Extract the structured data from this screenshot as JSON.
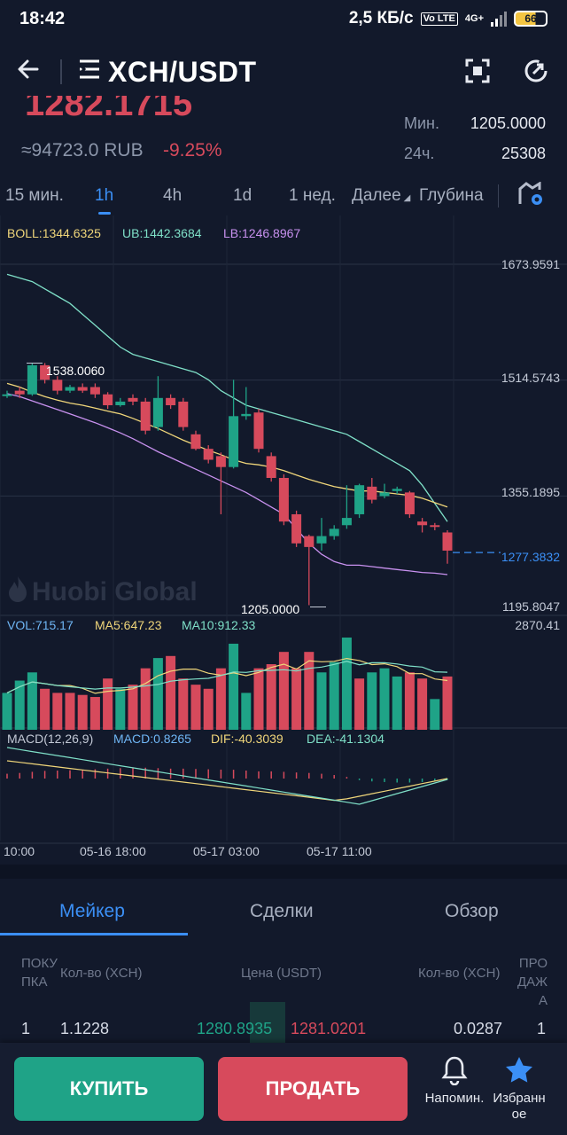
{
  "status": {
    "time": "18:42",
    "speed": "2,5 КБ/с",
    "volte": "Vo LTE",
    "network": "4G+",
    "battery": "66"
  },
  "header": {
    "pair": "XCH/USDT"
  },
  "ticker": {
    "price": "1282.1715",
    "rub": "≈94723.0 RUB",
    "change": "-9.25%",
    "min_label": "Мин.",
    "min_value": "1205.0000",
    "h24_label": "24ч.",
    "h24_value": "25308"
  },
  "timeframes": [
    "15 мин.",
    "1h",
    "4h",
    "1d",
    "1 нед.",
    "Далее",
    "Глубина"
  ],
  "indicators": {
    "boll": "BOLL:1344.6325",
    "ub": "UB:1442.3684",
    "lb": "LB:1246.8967",
    "vol": "VOL:715.17",
    "ma5": "MA5:647.23",
    "ma10": "MA10:912.33",
    "macd_name": "MACD(12,26,9)",
    "macd": "MACD:0.8265",
    "dif": "DIF:-40.3039",
    "dea": "DEA:-41.1304"
  },
  "watermark": "Huobi Global",
  "colors": {
    "up": "#1fa387",
    "down": "#d74a5c",
    "accent": "#3b8ff5",
    "bg": "#12192b"
  },
  "chart_data": {
    "type": "candlestick",
    "price_axis": [
      "1673.9591",
      "1514.5743",
      "1355.1895",
      "1277.3832",
      "1195.8047"
    ],
    "volume_axis": "2870.41",
    "x_labels": [
      "10:00",
      "05-16 18:00",
      "05-17 03:00",
      "05-17 11:00"
    ],
    "high_marker": "1538.0060",
    "low_marker": "1205.0000",
    "last_price": "1277.3832",
    "candles": [
      {
        "o": 1495,
        "c": 1495,
        "h": 1500,
        "l": 1490
      },
      {
        "o": 1500,
        "c": 1495,
        "h": 1505,
        "l": 1490
      },
      {
        "o": 1495,
        "c": 1535,
        "h": 1538,
        "l": 1493
      },
      {
        "o": 1535,
        "c": 1515,
        "h": 1538,
        "l": 1510
      },
      {
        "o": 1515,
        "c": 1500,
        "h": 1520,
        "l": 1495
      },
      {
        "o": 1500,
        "c": 1505,
        "h": 1508,
        "l": 1497
      },
      {
        "o": 1505,
        "c": 1500,
        "h": 1510,
        "l": 1497
      },
      {
        "o": 1505,
        "c": 1495,
        "h": 1510,
        "l": 1490
      },
      {
        "o": 1495,
        "c": 1480,
        "h": 1498,
        "l": 1475
      },
      {
        "o": 1480,
        "c": 1485,
        "h": 1490,
        "l": 1478
      },
      {
        "o": 1490,
        "c": 1485,
        "h": 1495,
        "l": 1480
      },
      {
        "o": 1485,
        "c": 1445,
        "h": 1490,
        "l": 1440
      },
      {
        "o": 1450,
        "c": 1490,
        "h": 1520,
        "l": 1445
      },
      {
        "o": 1490,
        "c": 1480,
        "h": 1495,
        "l": 1475
      },
      {
        "o": 1485,
        "c": 1450,
        "h": 1490,
        "l": 1445
      },
      {
        "o": 1440,
        "c": 1420,
        "h": 1445,
        "l": 1418
      },
      {
        "o": 1420,
        "c": 1405,
        "h": 1425,
        "l": 1400
      },
      {
        "o": 1410,
        "c": 1395,
        "h": 1415,
        "l": 1330
      },
      {
        "o": 1395,
        "c": 1465,
        "h": 1515,
        "l": 1393
      },
      {
        "o": 1465,
        "c": 1468,
        "h": 1505,
        "l": 1460
      },
      {
        "o": 1470,
        "c": 1420,
        "h": 1475,
        "l": 1415
      },
      {
        "o": 1410,
        "c": 1380,
        "h": 1415,
        "l": 1375
      },
      {
        "o": 1380,
        "c": 1320,
        "h": 1385,
        "l": 1315
      },
      {
        "o": 1330,
        "c": 1290,
        "h": 1335,
        "l": 1285
      },
      {
        "o": 1300,
        "c": 1285,
        "h": 1302,
        "l": 1205
      },
      {
        "o": 1290,
        "c": 1300,
        "h": 1325,
        "l": 1280
      },
      {
        "o": 1300,
        "c": 1310,
        "h": 1315,
        "l": 1295
      },
      {
        "o": 1315,
        "c": 1325,
        "h": 1370,
        "l": 1310
      },
      {
        "o": 1330,
        "c": 1370,
        "h": 1372,
        "l": 1325
      },
      {
        "o": 1368,
        "c": 1350,
        "h": 1380,
        "l": 1345
      },
      {
        "o": 1355,
        "c": 1360,
        "h": 1372,
        "l": 1352
      },
      {
        "o": 1362,
        "c": 1365,
        "h": 1368,
        "l": 1358
      },
      {
        "o": 1360,
        "c": 1330,
        "h": 1362,
        "l": 1325
      },
      {
        "o": 1320,
        "c": 1315,
        "h": 1325,
        "l": 1305
      },
      {
        "o": 1315,
        "c": 1313,
        "h": 1318,
        "l": 1308
      },
      {
        "o": 1305,
        "c": 1280,
        "h": 1308,
        "l": 1262
      }
    ],
    "volumes": [
      0.18,
      0.24,
      0.28,
      0.2,
      0.18,
      0.18,
      0.17,
      0.16,
      0.25,
      0.2,
      0.22,
      0.3,
      0.35,
      0.36,
      0.25,
      0.22,
      0.2,
      0.3,
      0.42,
      0.18,
      0.3,
      0.32,
      0.38,
      0.3,
      0.38,
      0.28,
      0.33,
      0.45,
      0.25,
      0.28,
      0.3,
      0.26,
      0.28,
      0.25,
      0.15,
      0.26
    ],
    "volume_colors": [
      "up",
      "up",
      "up",
      "down",
      "down",
      "down",
      "down",
      "down",
      "down",
      "up",
      "down",
      "down",
      "up",
      "down",
      "down",
      "down",
      "down",
      "down",
      "up",
      "up",
      "down",
      "down",
      "down",
      "down",
      "down",
      "up",
      "up",
      "up",
      "down",
      "up",
      "up",
      "up",
      "down",
      "down",
      "up",
      "down"
    ],
    "macd_hist": [
      0.3,
      0.35,
      0.42,
      0.48,
      0.5,
      0.52,
      0.55,
      0.58,
      0.62,
      0.65,
      0.7,
      0.68,
      0.65,
      0.62,
      0.62,
      0.6,
      0.58,
      0.56,
      0.55,
      0.5,
      0.45,
      0.45,
      0.42,
      0.38,
      0.35,
      0.3,
      0.22,
      0.1,
      -0.1,
      -0.18,
      -0.22,
      -0.25,
      -0.25,
      -0.22,
      -0.18,
      -0.08
    ],
    "bands": {
      "upper": [
        1660,
        1655,
        1650,
        1640,
        1630,
        1620,
        1605,
        1590,
        1575,
        1560,
        1550,
        1545,
        1540,
        1535,
        1530,
        1525,
        1515,
        1500,
        1490,
        1480,
        1475,
        1470,
        1465,
        1460,
        1455,
        1450,
        1445,
        1440,
        1430,
        1420,
        1410,
        1400,
        1390,
        1370,
        1345,
        1320
      ],
      "middle": [
        1510,
        1505,
        1498,
        1492,
        1487,
        1483,
        1480,
        1476,
        1472,
        1468,
        1462,
        1455,
        1448,
        1440,
        1432,
        1425,
        1418,
        1412,
        1405,
        1400,
        1398,
        1395,
        1390,
        1384,
        1378,
        1373,
        1368,
        1365,
        1362,
        1362,
        1360,
        1358,
        1356,
        1352,
        1346,
        1340
      ],
      "lower": [
        1496,
        1492,
        1486,
        1480,
        1474,
        1468,
        1462,
        1456,
        1449,
        1442,
        1434,
        1425,
        1416,
        1408,
        1400,
        1392,
        1384,
        1376,
        1368,
        1360,
        1350,
        1340,
        1330,
        1310,
        1290,
        1275,
        1265,
        1260,
        1260,
        1258,
        1256,
        1254,
        1252,
        1250,
        1249,
        1247
      ]
    }
  },
  "tabs": [
    "Мейкер",
    "Сделки",
    "Обзор"
  ],
  "orderbook": {
    "h_buy": "ПОКУ ПКА",
    "h_qty_left": "Кол-во (XCH)",
    "h_price": "Цена (USDT)",
    "h_qty_right": "Кол-во (XCH)",
    "h_sell": "ПРО ДАЖ А",
    "row": {
      "idx": "1",
      "qty_left": "1.1228",
      "bid": "1280.8935",
      "ask": "1281.0201",
      "qty_right": "0.0287",
      "idx2": "1"
    }
  },
  "footer": {
    "buy": "КУПИТЬ",
    "sell": "ПРОДАТЬ",
    "remind": "Напомин.",
    "fav": "Избранн ое"
  }
}
